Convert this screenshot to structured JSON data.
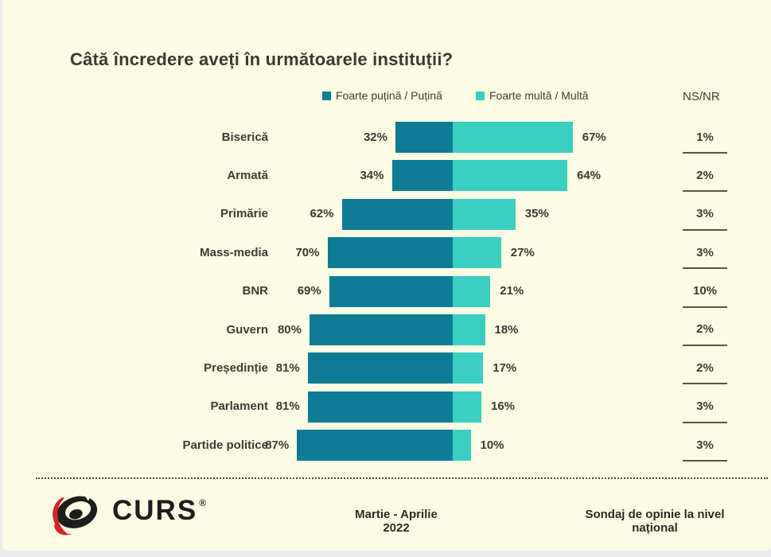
{
  "title": "Câtă încredere aveți în următoarele instituții?",
  "colors": {
    "background": "#fcfbe3",
    "negative_bar": "#0e7c96",
    "positive_bar": "#3bcfc1",
    "text": "#3b3b33",
    "logo_red": "#d32323",
    "logo_black": "#1d1d1d"
  },
  "legend": [
    {
      "label": "Foarte puțină / Puțină",
      "color": "#0e7c96"
    },
    {
      "label": "Foarte multă / Multă",
      "color": "#3bcfc1"
    }
  ],
  "nsnr_header": "NS/NR",
  "chart_data": {
    "type": "bar",
    "variant": "horizontal-diverging-stacked",
    "title": "Câtă încredere aveți în următoarele instituții?",
    "categories": [
      "Biserică",
      "Armată",
      "Primărie",
      "Mass-media",
      "BNR",
      "Guvern",
      "Președinție",
      "Parlament",
      "Partide politice"
    ],
    "series": [
      {
        "name": "Foarte puțină / Puțină",
        "color": "#0e7c96",
        "direction": "left",
        "values": [
          32,
          34,
          62,
          70,
          69,
          80,
          81,
          81,
          87
        ]
      },
      {
        "name": "Foarte multă / Multă",
        "color": "#3bcfc1",
        "direction": "right",
        "values": [
          67,
          64,
          35,
          27,
          21,
          18,
          17,
          16,
          10
        ]
      },
      {
        "name": "NS/NR",
        "display": "text-column",
        "values": [
          1,
          2,
          3,
          3,
          10,
          2,
          2,
          3,
          3
        ]
      }
    ],
    "value_suffix": "%",
    "xlim": [
      0,
      100
    ],
    "grid": false,
    "legend_position": "top"
  },
  "footer": {
    "logo_text": "CURS",
    "registered_mark": "®",
    "date": "Martie - Aprilie 2022",
    "note": "Sondaj de opinie la nivel național"
  }
}
